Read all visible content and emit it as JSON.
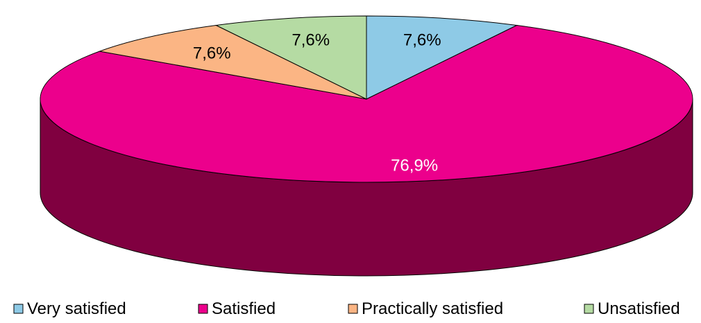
{
  "chart_data": {
    "type": "pie",
    "style": "3d",
    "categories": [
      "Very satisfied",
      "Satisfied",
      "Practically satisfied",
      "Unsatisfied"
    ],
    "values": [
      7.6,
      76.9,
      7.6,
      7.6
    ],
    "data_labels": [
      "7,6%",
      "76,9%",
      "7,6%",
      "7,6%"
    ],
    "colors": [
      "#8ecae6",
      "#ec008c",
      "#fbb584",
      "#b5dba3"
    ],
    "side_color": "#800040",
    "label_colors": [
      "#000000",
      "#ffffff",
      "#000000",
      "#000000"
    ],
    "title": "",
    "legend_position": "bottom"
  }
}
